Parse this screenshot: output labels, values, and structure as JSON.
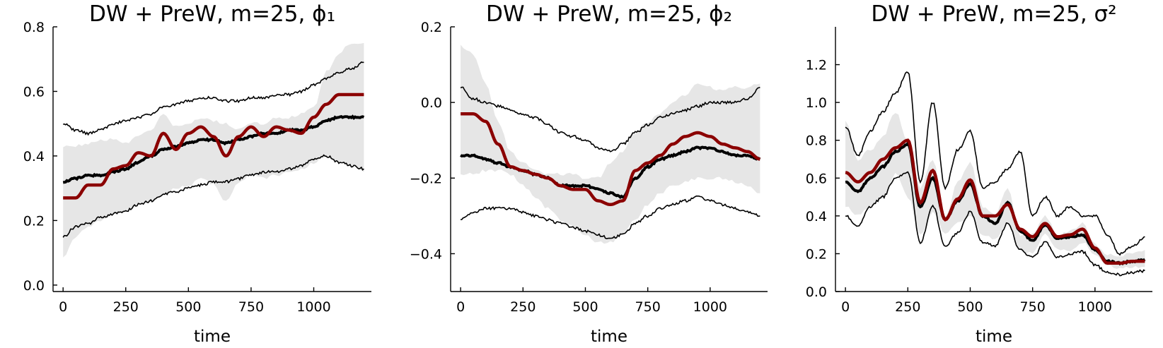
{
  "chart_data": [
    {
      "type": "line",
      "title": "DW + PreW, m=25, ϕ₁",
      "xlabel": "time",
      "ylabel": "",
      "xlim": [
        -40,
        1230
      ],
      "ylim": [
        -0.02,
        0.8
      ],
      "xticks": [
        0,
        250,
        500,
        750,
        1000
      ],
      "xtick_labels": [
        "0",
        "250",
        "500",
        "750",
        "1000"
      ],
      "yticks": [
        0.0,
        0.2,
        0.4,
        0.6,
        0.8
      ],
      "ytick_labels": [
        "0.0",
        "0.2",
        "0.4",
        "0.6",
        "0.8"
      ],
      "x": [
        0,
        50,
        100,
        150,
        200,
        250,
        300,
        350,
        400,
        450,
        500,
        550,
        600,
        650,
        700,
        750,
        800,
        850,
        900,
        950,
        1000,
        1050,
        1100,
        1150,
        1200
      ],
      "series": [
        {
          "name": "band_upper",
          "values": [
            0.43,
            0.43,
            0.44,
            0.45,
            0.45,
            0.44,
            0.46,
            0.48,
            0.53,
            0.49,
            0.5,
            0.52,
            0.51,
            0.5,
            0.48,
            0.5,
            0.5,
            0.52,
            0.52,
            0.53,
            0.55,
            0.66,
            0.72,
            0.75,
            0.75
          ]
        },
        {
          "name": "band_lower",
          "values": [
            0.09,
            0.15,
            0.18,
            0.2,
            0.22,
            0.23,
            0.25,
            0.26,
            0.28,
            0.3,
            0.31,
            0.33,
            0.31,
            0.26,
            0.32,
            0.34,
            0.33,
            0.34,
            0.35,
            0.36,
            0.38,
            0.4,
            0.38,
            0.37,
            0.35
          ]
        },
        {
          "name": "upper_quantile",
          "values": [
            0.5,
            0.48,
            0.47,
            0.48,
            0.5,
            0.51,
            0.52,
            0.53,
            0.55,
            0.56,
            0.57,
            0.58,
            0.58,
            0.57,
            0.57,
            0.58,
            0.58,
            0.59,
            0.59,
            0.6,
            0.62,
            0.64,
            0.66,
            0.67,
            0.69
          ]
        },
        {
          "name": "posterior_mean",
          "values": [
            0.32,
            0.33,
            0.34,
            0.34,
            0.35,
            0.36,
            0.38,
            0.4,
            0.42,
            0.43,
            0.44,
            0.45,
            0.45,
            0.44,
            0.45,
            0.46,
            0.47,
            0.47,
            0.48,
            0.48,
            0.49,
            0.51,
            0.52,
            0.52,
            0.52
          ]
        },
        {
          "name": "lower_quantile",
          "values": [
            0.15,
            0.18,
            0.19,
            0.21,
            0.22,
            0.23,
            0.25,
            0.26,
            0.28,
            0.29,
            0.3,
            0.31,
            0.32,
            0.32,
            0.33,
            0.34,
            0.35,
            0.35,
            0.36,
            0.37,
            0.39,
            0.4,
            0.38,
            0.37,
            0.36
          ]
        },
        {
          "name": "true_value",
          "values": [
            0.27,
            0.27,
            0.31,
            0.31,
            0.36,
            0.37,
            0.41,
            0.4,
            0.47,
            0.42,
            0.47,
            0.49,
            0.46,
            0.4,
            0.46,
            0.49,
            0.46,
            0.49,
            0.48,
            0.47,
            0.52,
            0.56,
            0.59,
            0.59,
            0.59
          ]
        }
      ]
    },
    {
      "type": "line",
      "title": "DW + PreW, m=25, ϕ₂",
      "xlabel": "time",
      "ylabel": "",
      "xlim": [
        -40,
        1230
      ],
      "ylim": [
        -0.5,
        0.2
      ],
      "xticks": [
        0,
        250,
        500,
        750,
        1000
      ],
      "xtick_labels": [
        "0",
        "250",
        "500",
        "750",
        "1000"
      ],
      "yticks": [
        -0.4,
        -0.2,
        0.0,
        0.2
      ],
      "ytick_labels": [
        "−0.4",
        "−0.2",
        "0.0",
        "0.2"
      ],
      "x": [
        0,
        50,
        100,
        150,
        200,
        250,
        300,
        350,
        400,
        450,
        500,
        550,
        600,
        650,
        700,
        750,
        800,
        850,
        900,
        950,
        1000,
        1050,
        1100,
        1150,
        1200
      ],
      "series": [
        {
          "name": "band_upper",
          "values": [
            0.15,
            0.13,
            0.05,
            -0.05,
            -0.13,
            -0.16,
            -0.18,
            -0.19,
            -0.19,
            -0.19,
            -0.2,
            -0.2,
            -0.16,
            -0.13,
            -0.08,
            -0.05,
            -0.03,
            0.0,
            0.02,
            0.05,
            0.04,
            0.03,
            0.04,
            0.04,
            0.05
          ]
        },
        {
          "name": "band_lower",
          "values": [
            -0.19,
            -0.19,
            -0.18,
            -0.18,
            -0.19,
            -0.22,
            -0.25,
            -0.28,
            -0.31,
            -0.33,
            -0.35,
            -0.37,
            -0.37,
            -0.35,
            -0.31,
            -0.27,
            -0.24,
            -0.22,
            -0.21,
            -0.2,
            -0.2,
            -0.2,
            -0.21,
            -0.22,
            -0.24
          ]
        },
        {
          "name": "upper_quantile",
          "values": [
            0.04,
            0.01,
            0.0,
            -0.01,
            -0.02,
            -0.03,
            -0.04,
            -0.06,
            -0.08,
            -0.09,
            -0.1,
            -0.12,
            -0.13,
            -0.11,
            -0.08,
            -0.06,
            -0.04,
            -0.03,
            -0.02,
            -0.01,
            0.0,
            0.0,
            0.0,
            0.01,
            0.04
          ]
        },
        {
          "name": "posterior_mean",
          "values": [
            -0.14,
            -0.14,
            -0.15,
            -0.16,
            -0.17,
            -0.18,
            -0.19,
            -0.2,
            -0.22,
            -0.22,
            -0.22,
            -0.23,
            -0.24,
            -0.25,
            -0.2,
            -0.17,
            -0.15,
            -0.14,
            -0.13,
            -0.12,
            -0.12,
            -0.13,
            -0.14,
            -0.14,
            -0.15
          ]
        },
        {
          "name": "lower_quantile",
          "values": [
            -0.31,
            -0.29,
            -0.28,
            -0.28,
            -0.28,
            -0.29,
            -0.3,
            -0.31,
            -0.32,
            -0.33,
            -0.34,
            -0.35,
            -0.36,
            -0.35,
            -0.32,
            -0.3,
            -0.28,
            -0.27,
            -0.26,
            -0.25,
            -0.26,
            -0.27,
            -0.28,
            -0.29,
            -0.3
          ]
        },
        {
          "name": "true_value",
          "values": [
            -0.03,
            -0.03,
            -0.05,
            -0.11,
            -0.17,
            -0.18,
            -0.19,
            -0.2,
            -0.22,
            -0.23,
            -0.23,
            -0.26,
            -0.27,
            -0.26,
            -0.18,
            -0.16,
            -0.14,
            -0.11,
            -0.09,
            -0.08,
            -0.09,
            -0.11,
            -0.12,
            -0.13,
            -0.15
          ]
        }
      ]
    },
    {
      "type": "line",
      "title": "DW + PreW, m=25, σ²",
      "xlabel": "time",
      "ylabel": "",
      "xlim": [
        -40,
        1230
      ],
      "ylim": [
        0.0,
        1.4
      ],
      "xticks": [
        0,
        250,
        500,
        750,
        1000
      ],
      "xtick_labels": [
        "0",
        "250",
        "500",
        "750",
        "1000"
      ],
      "yticks": [
        0.0,
        0.2,
        0.4,
        0.6,
        0.8,
        1.0,
        1.2
      ],
      "ytick_labels": [
        "0.0",
        "0.2",
        "0.4",
        "0.6",
        "0.8",
        "1.0",
        "1.2"
      ],
      "x": [
        0,
        50,
        100,
        150,
        200,
        250,
        300,
        350,
        400,
        450,
        500,
        550,
        600,
        650,
        700,
        750,
        800,
        850,
        900,
        950,
        1000,
        1050,
        1100,
        1150,
        1200
      ],
      "series": [
        {
          "name": "band_upper",
          "values": [
            0.9,
            0.7,
            0.75,
            0.82,
            0.95,
            0.8,
            0.55,
            0.7,
            0.4,
            0.58,
            0.68,
            0.45,
            0.4,
            0.55,
            0.3,
            0.3,
            0.4,
            0.3,
            0.32,
            0.36,
            0.25,
            0.2,
            0.19,
            0.2,
            0.22
          ]
        },
        {
          "name": "band_lower",
          "values": [
            0.45,
            0.4,
            0.45,
            0.5,
            0.62,
            0.5,
            0.3,
            0.42,
            0.3,
            0.36,
            0.4,
            0.3,
            0.28,
            0.36,
            0.22,
            0.2,
            0.3,
            0.22,
            0.22,
            0.26,
            0.2,
            0.14,
            0.12,
            0.13,
            0.13
          ]
        },
        {
          "name": "upper_quantile",
          "values": [
            0.87,
            0.72,
            0.85,
            0.95,
            1.05,
            1.16,
            0.58,
            1.0,
            0.55,
            0.75,
            0.85,
            0.55,
            0.58,
            0.65,
            0.74,
            0.4,
            0.5,
            0.4,
            0.45,
            0.4,
            0.4,
            0.3,
            0.2,
            0.24,
            0.29
          ]
        },
        {
          "name": "posterior_mean",
          "values": [
            0.58,
            0.53,
            0.6,
            0.66,
            0.74,
            0.78,
            0.45,
            0.6,
            0.38,
            0.48,
            0.57,
            0.4,
            0.36,
            0.47,
            0.32,
            0.27,
            0.35,
            0.28,
            0.29,
            0.3,
            0.22,
            0.16,
            0.15,
            0.16,
            0.17
          ]
        },
        {
          "name": "lower_quantile",
          "values": [
            0.4,
            0.35,
            0.45,
            0.5,
            0.6,
            0.63,
            0.26,
            0.45,
            0.24,
            0.31,
            0.42,
            0.26,
            0.24,
            0.36,
            0.22,
            0.18,
            0.26,
            0.18,
            0.2,
            0.21,
            0.14,
            0.1,
            0.09,
            0.1,
            0.11
          ]
        },
        {
          "name": "true_value",
          "values": [
            0.63,
            0.58,
            0.63,
            0.7,
            0.76,
            0.8,
            0.47,
            0.64,
            0.38,
            0.49,
            0.59,
            0.4,
            0.4,
            0.46,
            0.33,
            0.29,
            0.36,
            0.29,
            0.3,
            0.33,
            0.23,
            0.15,
            0.15,
            0.16,
            0.16
          ]
        }
      ]
    }
  ],
  "colors": {
    "band": "#e6e6e6",
    "quantile": "#000000",
    "mean": "#000000",
    "truth": "#8b0000"
  }
}
